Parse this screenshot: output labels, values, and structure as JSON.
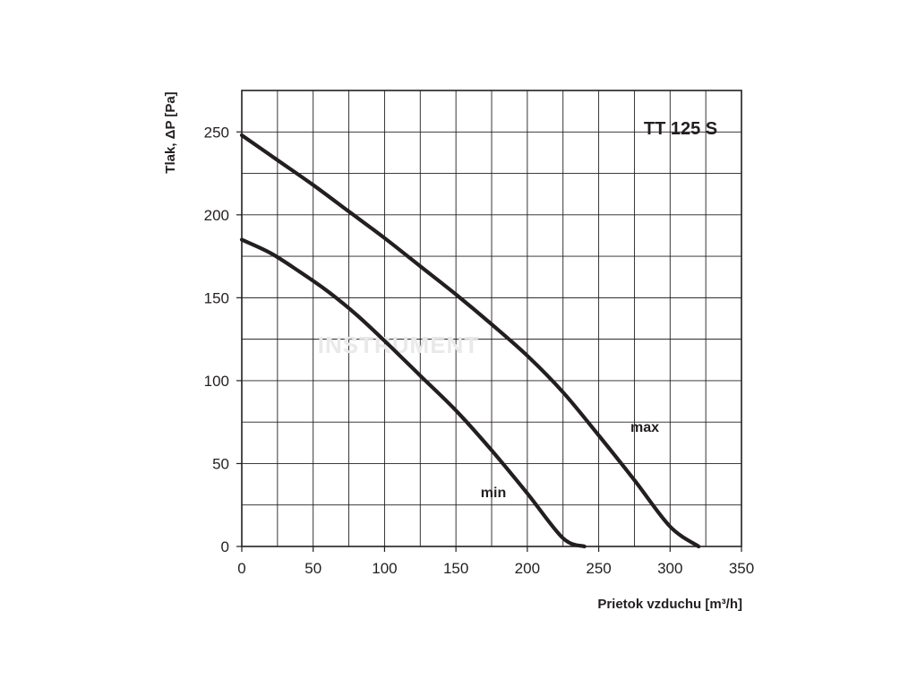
{
  "chart_data": {
    "type": "line",
    "title": "TT 125 S",
    "xlabel": "Prietok vzduchu  [m³/h]",
    "ylabel": "Tlak, ΔP [Pa]",
    "xlim": [
      0,
      350
    ],
    "ylim": [
      0,
      275
    ],
    "x_ticks": [
      0,
      50,
      100,
      150,
      200,
      250,
      300,
      350
    ],
    "y_ticks": [
      0,
      50,
      100,
      150,
      200,
      250
    ],
    "x_tick_labels": [
      "0",
      "50",
      "100",
      "150",
      "200",
      "250",
      "300",
      "350"
    ],
    "y_tick_labels": [
      "0",
      "50",
      "100",
      "150",
      "200",
      "250"
    ],
    "grid": true,
    "watermark": "INSTRUMENT",
    "series": [
      {
        "name": "max",
        "x": [
          0,
          25,
          50,
          75,
          100,
          125,
          150,
          175,
          200,
          225,
          250,
          275,
          300,
          320
        ],
        "y": [
          248,
          233,
          218,
          202,
          186,
          169,
          152,
          134,
          115,
          93,
          67,
          40,
          12,
          0
        ]
      },
      {
        "name": "min",
        "x": [
          0,
          20,
          40,
          60,
          80,
          100,
          125,
          150,
          175,
          200,
          225,
          240
        ],
        "y": [
          185,
          177,
          166,
          154,
          140,
          124,
          103,
          82,
          58,
          32,
          5,
          0
        ]
      }
    ],
    "colors": {
      "line": "#231f20",
      "grid": "#231f20",
      "text": "#231f20"
    }
  }
}
